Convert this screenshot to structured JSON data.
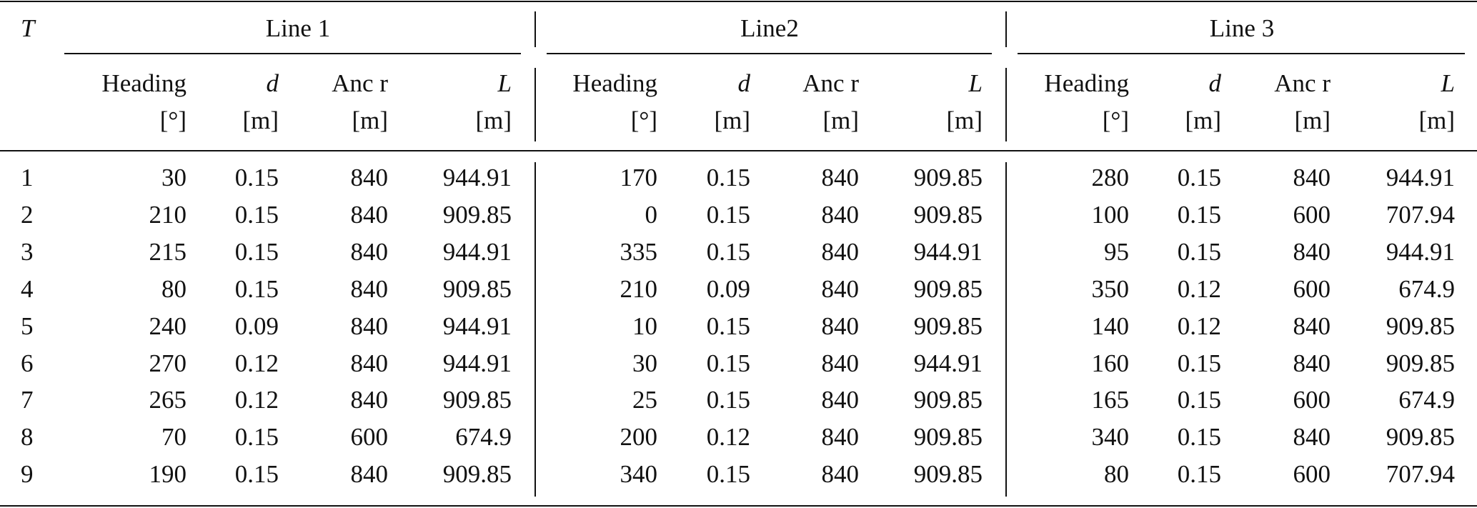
{
  "header": {
    "row_label": "T",
    "groups": [
      "Line 1",
      "Line2",
      "Line 3"
    ],
    "columns": [
      {
        "name": "Heading",
        "unit": "[°]"
      },
      {
        "name": "d",
        "unit": "[m]"
      },
      {
        "name": "Anc r",
        "unit": "[m]"
      },
      {
        "name": "L",
        "unit": "[m]"
      }
    ]
  },
  "table": {
    "rows": [
      [
        "1",
        "30",
        "0.15",
        "840",
        "944.91",
        "170",
        "0.15",
        "840",
        "909.85",
        "280",
        "0.15",
        "840",
        "944.91"
      ],
      [
        "2",
        "210",
        "0.15",
        "840",
        "909.85",
        "0",
        "0.15",
        "840",
        "909.85",
        "100",
        "0.15",
        "600",
        "707.94"
      ],
      [
        "3",
        "215",
        "0.15",
        "840",
        "944.91",
        "335",
        "0.15",
        "840",
        "944.91",
        "95",
        "0.15",
        "840",
        "944.91"
      ],
      [
        "4",
        "80",
        "0.15",
        "840",
        "909.85",
        "210",
        "0.09",
        "840",
        "909.85",
        "350",
        "0.12",
        "600",
        "674.9"
      ],
      [
        "5",
        "240",
        "0.09",
        "840",
        "944.91",
        "10",
        "0.15",
        "840",
        "909.85",
        "140",
        "0.12",
        "840",
        "909.85"
      ],
      [
        "6",
        "270",
        "0.12",
        "840",
        "944.91",
        "30",
        "0.15",
        "840",
        "944.91",
        "160",
        "0.15",
        "840",
        "909.85"
      ],
      [
        "7",
        "265",
        "0.12",
        "840",
        "909.85",
        "25",
        "0.15",
        "840",
        "909.85",
        "165",
        "0.15",
        "600",
        "674.9"
      ],
      [
        "8",
        "70",
        "0.15",
        "600",
        "674.9",
        "200",
        "0.12",
        "840",
        "909.85",
        "340",
        "0.15",
        "840",
        "909.85"
      ],
      [
        "9",
        "190",
        "0.15",
        "840",
        "909.85",
        "340",
        "0.15",
        "840",
        "909.85",
        "80",
        "0.15",
        "600",
        "707.94"
      ]
    ]
  }
}
